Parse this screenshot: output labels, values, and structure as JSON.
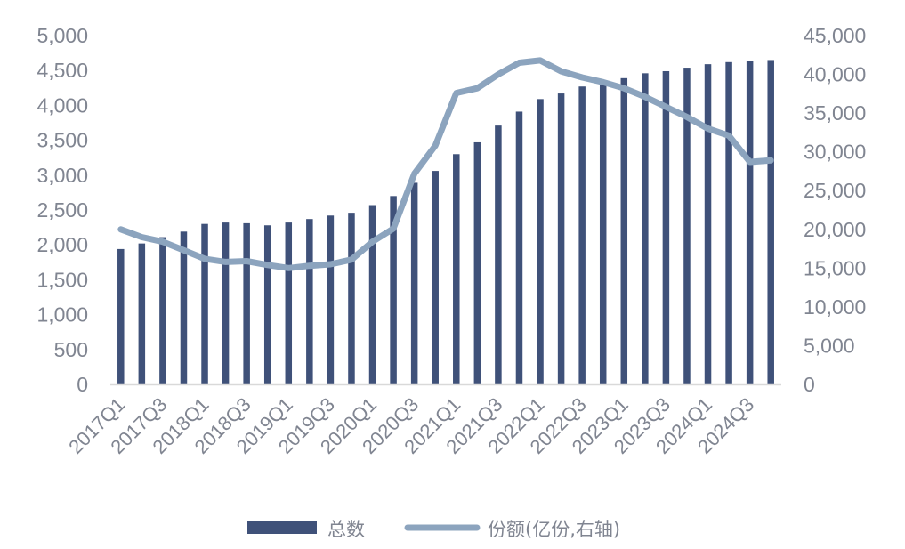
{
  "chart_data": {
    "type": "bar",
    "categories": [
      "2017Q1",
      "2017Q2",
      "2017Q3",
      "2017Q4",
      "2018Q1",
      "2018Q2",
      "2018Q3",
      "2018Q4",
      "2019Q1",
      "2019Q2",
      "2019Q3",
      "2019Q4",
      "2020Q1",
      "2020Q2",
      "2020Q3",
      "2020Q4",
      "2021Q1",
      "2021Q2",
      "2021Q3",
      "2021Q4",
      "2022Q1",
      "2022Q2",
      "2022Q3",
      "2022Q4",
      "2023Q1",
      "2023Q2",
      "2023Q3",
      "2023Q4",
      "2024Q1",
      "2024Q2",
      "2024Q3",
      "2024Q4"
    ],
    "x_tick_labels": [
      "2017Q1",
      "2017Q3",
      "2018Q1",
      "2018Q3",
      "2019Q1",
      "2019Q3",
      "2020Q1",
      "2020Q3",
      "2021Q1",
      "2021Q3",
      "2022Q1",
      "2022Q3",
      "2023Q1",
      "2023Q3",
      "2024Q1",
      "2024Q3"
    ],
    "series": [
      {
        "name": "总数",
        "type": "bar",
        "axis": "left",
        "color": "#3f5179",
        "values": [
          1940,
          2020,
          2110,
          2190,
          2300,
          2320,
          2310,
          2280,
          2320,
          2370,
          2420,
          2460,
          2570,
          2700,
          2890,
          3060,
          3300,
          3470,
          3710,
          3910,
          4090,
          4170,
          4270,
          4320,
          4390,
          4460,
          4490,
          4540,
          4590,
          4620,
          4640,
          4650
        ]
      },
      {
        "name": "份额(亿份,右轴)",
        "type": "line",
        "axis": "right",
        "color": "#8ca4be",
        "values": [
          20000,
          19000,
          18400,
          17300,
          16200,
          15800,
          15900,
          15400,
          15000,
          15300,
          15500,
          16100,
          18400,
          20100,
          27200,
          30800,
          37600,
          38200,
          40000,
          41500,
          41800,
          40400,
          39600,
          39000,
          38200,
          37100,
          35800,
          34500,
          33000,
          32100,
          28700,
          28900
        ]
      }
    ],
    "y_left": {
      "ylim": [
        0,
        5000
      ],
      "ticks": [
        "0",
        "500",
        "1,000",
        "1,500",
        "2,000",
        "2,500",
        "3,000",
        "3,500",
        "4,000",
        "4,500",
        "5,000"
      ]
    },
    "y_right": {
      "ylim": [
        0,
        45000
      ],
      "ticks": [
        "0",
        "5,000",
        "10,000",
        "15,000",
        "20,000",
        "25,000",
        "30,000",
        "35,000",
        "40,000",
        "45,000"
      ]
    },
    "legend": {
      "position": "bottom",
      "items": [
        "总数",
        "份额(亿份,右轴)"
      ]
    },
    "grid": false
  }
}
